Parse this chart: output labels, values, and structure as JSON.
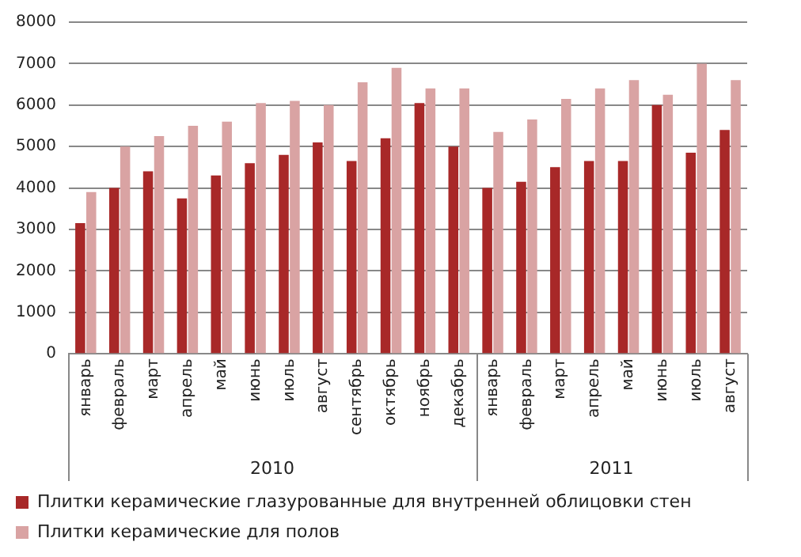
{
  "chart_data": {
    "type": "bar",
    "categories": [
      "январь",
      "февраль",
      "март",
      "апрель",
      "май",
      "июнь",
      "июль",
      "август",
      "сентябрь",
      "октябрь",
      "ноябрь",
      "декабрь",
      "январь",
      "февраль",
      "март",
      "апрель",
      "май",
      "июнь",
      "июль",
      "август"
    ],
    "series": [
      {
        "name": "Плитки керамические глазурованные для внутренней облицовки стен",
        "color": "#a82828",
        "values": [
          3150,
          4000,
          4400,
          3750,
          4300,
          4600,
          4800,
          5100,
          4650,
          5200,
          6050,
          5000,
          4000,
          4150,
          4500,
          4650,
          4650,
          6000,
          4850,
          5400
        ]
      },
      {
        "name": "Плитки керамические для полов",
        "color": "#d9a3a3",
        "values": [
          3900,
          5000,
          5250,
          5500,
          5600,
          6050,
          6100,
          6000,
          6550,
          6900,
          6400,
          6400,
          5350,
          5650,
          6150,
          6400,
          6600,
          6250,
          7000,
          6600
        ]
      }
    ],
    "ylim": [
      0,
      8000
    ],
    "yticks": [
      0,
      1000,
      2000,
      3000,
      4000,
      5000,
      6000,
      7000,
      8000
    ],
    "grid": "y",
    "legend": "bottom left",
    "annotations": [
      "2010",
      "2011"
    ]
  }
}
